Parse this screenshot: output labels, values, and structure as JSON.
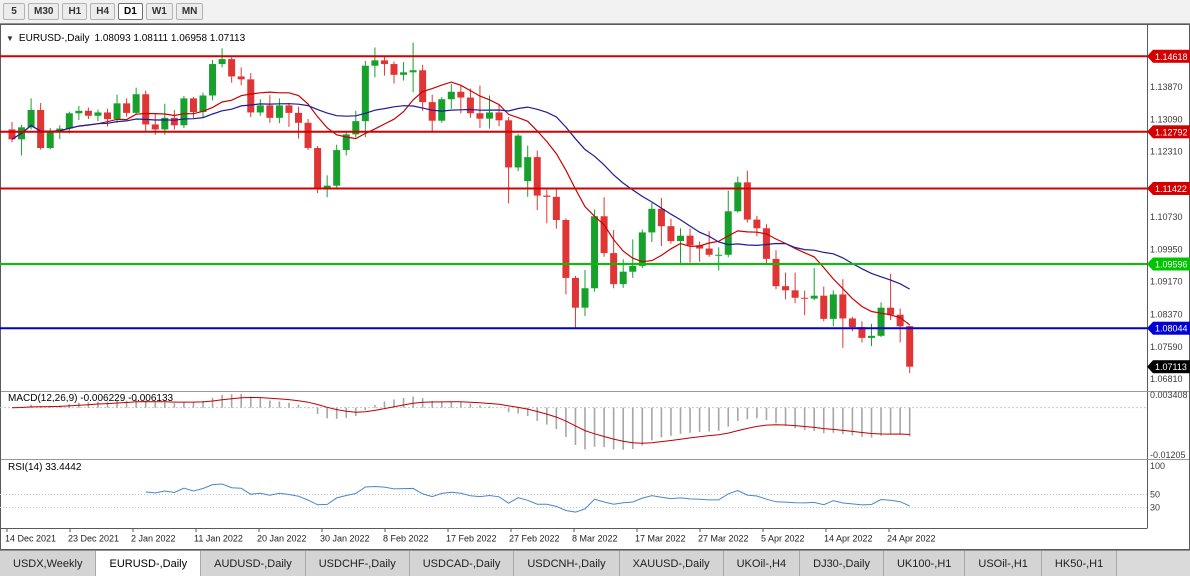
{
  "toolbar": {
    "periods": [
      {
        "label": "5",
        "active": false
      },
      {
        "label": "M30",
        "active": false
      },
      {
        "label": "H1",
        "active": false
      },
      {
        "label": "H4",
        "active": false
      },
      {
        "label": "D1",
        "active": true
      },
      {
        "label": "W1",
        "active": false
      },
      {
        "label": "MN",
        "active": false
      }
    ]
  },
  "chart": {
    "collapse_icon": "▼",
    "title_symbol": "EURUSD-,Daily",
    "title_ohlc": "1.08093 1.08111 1.06958 1.07113"
  },
  "price_scale": {
    "labels": [
      "1.13870",
      "1.13090",
      "1.12310",
      "1.10730",
      "1.09950",
      "1.09170",
      "1.08370",
      "1.07590",
      "1.06810"
    ]
  },
  "hlines": [
    {
      "price": 1.14618,
      "label": "1.14618",
      "color": "#d20000"
    },
    {
      "price": 1.12792,
      "label": "1.12792",
      "color": "#d20000"
    },
    {
      "price": 1.11422,
      "label": "1.11422",
      "color": "#d20000"
    },
    {
      "price": 1.09596,
      "label": "1.09596",
      "color": "#00c400"
    },
    {
      "price": 1.08044,
      "label": "1.08044",
      "color": "#0000d2"
    }
  ],
  "price_marker": {
    "price": 1.07113,
    "label": "1.07113",
    "color": "#000000"
  },
  "macd": {
    "label": "MACD(12,26,9) -0.006229 -0.006133",
    "params": [
      12,
      26,
      9
    ],
    "values_text": [
      "-0.006229",
      "-0.006133"
    ],
    "scale_labels": [
      "0.003408",
      "-0.01205"
    ],
    "scale_range": [
      -0.01205,
      0.003408
    ]
  },
  "rsi": {
    "label": "RSI(14) 33.4442",
    "period": 14,
    "value": 33.4442,
    "scale_labels": [
      {
        "value": 100,
        "label": "100"
      },
      {
        "value": 50,
        "label": "50"
      },
      {
        "value": 30,
        "label": "30"
      }
    ],
    "levels": [
      50,
      30
    ]
  },
  "date_axis": {
    "labels": [
      "14 Dec 2021",
      "23 Dec 2021",
      "2 Jan 2022",
      "11 Jan 2022",
      "20 Jan 2022",
      "30 Jan 2022",
      "8 Feb 2022",
      "17 Feb 2022",
      "27 Feb 2022",
      "8 Mar 2022",
      "17 Mar 2022",
      "27 Mar 2022",
      "5 Apr 2022",
      "14 Apr 2022",
      "24 Apr 2022"
    ]
  },
  "tabbar": {
    "tabs": [
      {
        "label": "USDX,Weekly",
        "active": false
      },
      {
        "label": "EURUSD-,Daily",
        "active": true
      },
      {
        "label": "AUDUSD-,Daily",
        "active": false
      },
      {
        "label": "USDCHF-,Daily",
        "active": false
      },
      {
        "label": "USDCAD-,Daily",
        "active": false
      },
      {
        "label": "USDCNH-,Daily",
        "active": false
      },
      {
        "label": "XAUUSD-,Daily",
        "active": false
      },
      {
        "label": "UKOil-,H4",
        "active": false
      },
      {
        "label": "DJ30-,Daily",
        "active": false
      },
      {
        "label": "UK100-,H1",
        "active": false
      },
      {
        "label": "USOil-,H1",
        "active": false
      },
      {
        "label": "HK50-,H1",
        "active": false
      }
    ]
  },
  "chart_data": {
    "type": "candlestick",
    "symbol": "EURUSD",
    "timeframe": "Daily",
    "price_range": [
      1.0655,
      1.1535
    ],
    "colors": {
      "up": "#17a02c",
      "down": "#e03535",
      "ma_fast": "#cc0000",
      "ma_slow": "#1c1c99",
      "macd_hist": "#a6a6a6",
      "macd_signal": "#c00000",
      "rsi": "#4a86c8"
    },
    "overlays": [
      {
        "name": "ma-fast",
        "period": 10,
        "color_key": "ma_fast"
      },
      {
        "name": "ma-slow",
        "period": 21,
        "color_key": "ma_slow"
      }
    ],
    "candles": [
      {
        "d": "14 Dec 2021",
        "o": 1.1285,
        "h": 1.1303,
        "l": 1.1254,
        "c": 1.1261
      },
      {
        "d": "15 Dec 2021",
        "o": 1.1261,
        "h": 1.1296,
        "l": 1.1222,
        "c": 1.129
      },
      {
        "d": "16 Dec 2021",
        "o": 1.129,
        "h": 1.136,
        "l": 1.1285,
        "c": 1.1332
      },
      {
        "d": "17 Dec 2021",
        "o": 1.1332,
        "h": 1.1349,
        "l": 1.1236,
        "c": 1.124
      },
      {
        "d": "20 Dec 2021",
        "o": 1.124,
        "h": 1.1288,
        "l": 1.1237,
        "c": 1.128
      },
      {
        "d": "21 Dec 2021",
        "o": 1.128,
        "h": 1.1295,
        "l": 1.1262,
        "c": 1.1287
      },
      {
        "d": "22 Dec 2021",
        "o": 1.1287,
        "h": 1.1328,
        "l": 1.1275,
        "c": 1.1324
      },
      {
        "d": "23 Dec 2021",
        "o": 1.1324,
        "h": 1.1342,
        "l": 1.1308,
        "c": 1.133
      },
      {
        "d": "24 Dec 2021",
        "o": 1.133,
        "h": 1.1338,
        "l": 1.131,
        "c": 1.1318
      },
      {
        "d": "27 Dec 2021",
        "o": 1.1318,
        "h": 1.1333,
        "l": 1.1305,
        "c": 1.1326
      },
      {
        "d": "28 Dec 2021",
        "o": 1.1326,
        "h": 1.1335,
        "l": 1.1292,
        "c": 1.131
      },
      {
        "d": "29 Dec 2021",
        "o": 1.131,
        "h": 1.1369,
        "l": 1.1301,
        "c": 1.1348
      },
      {
        "d": "30 Dec 2021",
        "o": 1.1348,
        "h": 1.136,
        "l": 1.1316,
        "c": 1.1325
      },
      {
        "d": "31 Dec 2021",
        "o": 1.1325,
        "h": 1.1386,
        "l": 1.1321,
        "c": 1.137
      },
      {
        "d": "3 Jan 2022",
        "o": 1.137,
        "h": 1.1379,
        "l": 1.1279,
        "c": 1.1297
      },
      {
        "d": "4 Jan 2022",
        "o": 1.1297,
        "h": 1.1323,
        "l": 1.1272,
        "c": 1.1285
      },
      {
        "d": "5 Jan 2022",
        "o": 1.1285,
        "h": 1.1347,
        "l": 1.1272,
        "c": 1.1313
      },
      {
        "d": "6 Jan 2022",
        "o": 1.1313,
        "h": 1.1332,
        "l": 1.1285,
        "c": 1.1295
      },
      {
        "d": "7 Jan 2022",
        "o": 1.1295,
        "h": 1.1366,
        "l": 1.1288,
        "c": 1.136
      },
      {
        "d": "10 Jan 2022",
        "o": 1.136,
        "h": 1.1363,
        "l": 1.1313,
        "c": 1.1327
      },
      {
        "d": "11 Jan 2022",
        "o": 1.1327,
        "h": 1.1374,
        "l": 1.1314,
        "c": 1.1367
      },
      {
        "d": "12 Jan 2022",
        "o": 1.1367,
        "h": 1.1453,
        "l": 1.1355,
        "c": 1.1443
      },
      {
        "d": "13 Jan 2022",
        "o": 1.1443,
        "h": 1.1481,
        "l": 1.1435,
        "c": 1.1455
      },
      {
        "d": "14 Jan 2022",
        "o": 1.1455,
        "h": 1.1459,
        "l": 1.1398,
        "c": 1.1413
      },
      {
        "d": "17 Jan 2022",
        "o": 1.1413,
        "h": 1.1435,
        "l": 1.1392,
        "c": 1.1406
      },
      {
        "d": "18 Jan 2022",
        "o": 1.1406,
        "h": 1.1421,
        "l": 1.1315,
        "c": 1.1326
      },
      {
        "d": "19 Jan 2022",
        "o": 1.1326,
        "h": 1.1358,
        "l": 1.1318,
        "c": 1.1343
      },
      {
        "d": "20 Jan 2022",
        "o": 1.1343,
        "h": 1.1368,
        "l": 1.1301,
        "c": 1.1313
      },
      {
        "d": "21 Jan 2022",
        "o": 1.1313,
        "h": 1.136,
        "l": 1.13,
        "c": 1.1343
      },
      {
        "d": "24 Jan 2022",
        "o": 1.1343,
        "h": 1.1349,
        "l": 1.1291,
        "c": 1.1325
      },
      {
        "d": "25 Jan 2022",
        "o": 1.1325,
        "h": 1.134,
        "l": 1.1263,
        "c": 1.1301
      },
      {
        "d": "26 Jan 2022",
        "o": 1.1301,
        "h": 1.131,
        "l": 1.1235,
        "c": 1.124
      },
      {
        "d": "27 Jan 2022",
        "o": 1.124,
        "h": 1.1245,
        "l": 1.1131,
        "c": 1.1144
      },
      {
        "d": "28 Jan 2022",
        "o": 1.1144,
        "h": 1.1174,
        "l": 1.1121,
        "c": 1.1149
      },
      {
        "d": "31 Jan 2022",
        "o": 1.1149,
        "h": 1.1248,
        "l": 1.1141,
        "c": 1.1235
      },
      {
        "d": "1 Feb 2022",
        "o": 1.1235,
        "h": 1.1279,
        "l": 1.1222,
        "c": 1.1273
      },
      {
        "d": "2 Feb 2022",
        "o": 1.1273,
        "h": 1.133,
        "l": 1.1266,
        "c": 1.1305
      },
      {
        "d": "3 Feb 2022",
        "o": 1.1305,
        "h": 1.1451,
        "l": 1.1266,
        "c": 1.1439
      },
      {
        "d": "4 Feb 2022",
        "o": 1.1439,
        "h": 1.1483,
        "l": 1.1411,
        "c": 1.1452
      },
      {
        "d": "7 Feb 2022",
        "o": 1.1452,
        "h": 1.146,
        "l": 1.1415,
        "c": 1.1443
      },
      {
        "d": "8 Feb 2022",
        "o": 1.1443,
        "h": 1.1449,
        "l": 1.1396,
        "c": 1.1417
      },
      {
        "d": "9 Feb 2022",
        "o": 1.1417,
        "h": 1.1448,
        "l": 1.1403,
        "c": 1.1423
      },
      {
        "d": "10 Feb 2022",
        "o": 1.1423,
        "h": 1.1495,
        "l": 1.1375,
        "c": 1.1428
      },
      {
        "d": "11 Feb 2022",
        "o": 1.1428,
        "h": 1.1441,
        "l": 1.133,
        "c": 1.1351
      },
      {
        "d": "14 Feb 2022",
        "o": 1.1351,
        "h": 1.1369,
        "l": 1.1278,
        "c": 1.1306
      },
      {
        "d": "15 Feb 2022",
        "o": 1.1306,
        "h": 1.1363,
        "l": 1.1301,
        "c": 1.1358
      },
      {
        "d": "16 Feb 2022",
        "o": 1.1358,
        "h": 1.1395,
        "l": 1.1335,
        "c": 1.1376
      },
      {
        "d": "17 Feb 2022",
        "o": 1.1376,
        "h": 1.1391,
        "l": 1.1324,
        "c": 1.1362
      },
      {
        "d": "18 Feb 2022",
        "o": 1.1362,
        "h": 1.1384,
        "l": 1.1313,
        "c": 1.1324
      },
      {
        "d": "21 Feb 2022",
        "o": 1.1324,
        "h": 1.1391,
        "l": 1.1288,
        "c": 1.1311
      },
      {
        "d": "22 Feb 2022",
        "o": 1.1311,
        "h": 1.1367,
        "l": 1.1287,
        "c": 1.1326
      },
      {
        "d": "23 Feb 2022",
        "o": 1.1326,
        "h": 1.1344,
        "l": 1.1293,
        "c": 1.1307
      },
      {
        "d": "24 Feb 2022",
        "o": 1.1307,
        "h": 1.1315,
        "l": 1.1106,
        "c": 1.1193
      },
      {
        "d": "25 Feb 2022",
        "o": 1.1193,
        "h": 1.1274,
        "l": 1.1184,
        "c": 1.127
      },
      {
        "d": "28 Feb 2022",
        "o": 1.116,
        "h": 1.1246,
        "l": 1.1122,
        "c": 1.1218
      },
      {
        "d": "1 Mar 2022",
        "o": 1.1218,
        "h": 1.1234,
        "l": 1.109,
        "c": 1.1125
      },
      {
        "d": "2 Mar 2022",
        "o": 1.1125,
        "h": 1.1139,
        "l": 1.1058,
        "c": 1.1122
      },
      {
        "d": "3 Mar 2022",
        "o": 1.1122,
        "h": 1.1143,
        "l": 1.1045,
        "c": 1.1066
      },
      {
        "d": "4 Mar 2022",
        "o": 1.1066,
        "h": 1.107,
        "l": 1.0886,
        "c": 1.0926
      },
      {
        "d": "7 Mar 2022",
        "o": 1.0926,
        "h": 1.0931,
        "l": 1.0806,
        "c": 1.0854
      },
      {
        "d": "8 Mar 2022",
        "o": 1.0854,
        "h": 1.0945,
        "l": 1.0834,
        "c": 1.0901
      },
      {
        "d": "9 Mar 2022",
        "o": 1.0901,
        "h": 1.1091,
        "l": 1.0893,
        "c": 1.1075
      },
      {
        "d": "10 Mar 2022",
        "o": 1.1075,
        "h": 1.1121,
        "l": 1.0977,
        "c": 1.0986
      },
      {
        "d": "11 Mar 2022",
        "o": 1.0986,
        "h": 1.1042,
        "l": 1.0901,
        "c": 1.0911
      },
      {
        "d": "14 Mar 2022",
        "o": 1.0911,
        "h": 1.0971,
        "l": 1.0902,
        "c": 1.0941
      },
      {
        "d": "15 Mar 2022",
        "o": 1.0941,
        "h": 1.1019,
        "l": 1.0926,
        "c": 1.0955
      },
      {
        "d": "16 Mar 2022",
        "o": 1.0955,
        "h": 1.1043,
        "l": 1.095,
        "c": 1.1036
      },
      {
        "d": "17 Mar 2022",
        "o": 1.1036,
        "h": 1.1107,
        "l": 1.1013,
        "c": 1.1093
      },
      {
        "d": "18 Mar 2022",
        "o": 1.1093,
        "h": 1.1119,
        "l": 1.1003,
        "c": 1.1051
      },
      {
        "d": "21 Mar 2022",
        "o": 1.1051,
        "h": 1.1069,
        "l": 1.1009,
        "c": 1.1015
      },
      {
        "d": "22 Mar 2022",
        "o": 1.1015,
        "h": 1.1046,
        "l": 1.0962,
        "c": 1.1028
      },
      {
        "d": "23 Mar 2022",
        "o": 1.1028,
        "h": 1.1045,
        "l": 1.0963,
        "c": 1.1005
      },
      {
        "d": "24 Mar 2022",
        "o": 1.1005,
        "h": 1.1014,
        "l": 1.0965,
        "c": 1.0997
      },
      {
        "d": "25 Mar 2022",
        "o": 1.0997,
        "h": 1.1039,
        "l": 1.0977,
        "c": 1.0982
      },
      {
        "d": "28 Mar 2022",
        "o": 1.0982,
        "h": 1.1,
        "l": 1.0944,
        "c": 1.0982
      },
      {
        "d": "29 Mar 2022",
        "o": 1.0982,
        "h": 1.1137,
        "l": 1.0976,
        "c": 1.1087
      },
      {
        "d": "30 Mar 2022",
        "o": 1.1087,
        "h": 1.1171,
        "l": 1.1084,
        "c": 1.1157
      },
      {
        "d": "31 Mar 2022",
        "o": 1.1157,
        "h": 1.1185,
        "l": 1.106,
        "c": 1.1067
      },
      {
        "d": "1 Apr 2022",
        "o": 1.1067,
        "h": 1.1076,
        "l": 1.1027,
        "c": 1.1046
      },
      {
        "d": "4 Apr 2022",
        "o": 1.1046,
        "h": 1.1056,
        "l": 1.096,
        "c": 1.0972
      },
      {
        "d": "5 Apr 2022",
        "o": 1.0972,
        "h": 1.0993,
        "l": 1.0899,
        "c": 1.0906
      },
      {
        "d": "6 Apr 2022",
        "o": 1.0906,
        "h": 1.0939,
        "l": 1.0874,
        "c": 1.0896
      },
      {
        "d": "7 Apr 2022",
        "o": 1.0896,
        "h": 1.0939,
        "l": 1.0865,
        "c": 1.0878
      },
      {
        "d": "8 Apr 2022",
        "o": 1.0878,
        "h": 1.0895,
        "l": 1.0836,
        "c": 1.0876
      },
      {
        "d": "11 Apr 2022",
        "o": 1.0876,
        "h": 1.095,
        "l": 1.0872,
        "c": 1.0883
      },
      {
        "d": "12 Apr 2022",
        "o": 1.0883,
        "h": 1.0905,
        "l": 1.0821,
        "c": 1.0827
      },
      {
        "d": "13 Apr 2022",
        "o": 1.0827,
        "h": 1.0896,
        "l": 1.0809,
        "c": 1.0886
      },
      {
        "d": "14 Apr 2022",
        "o": 1.0886,
        "h": 1.0923,
        "l": 1.0757,
        "c": 1.0828
      },
      {
        "d": "15 Apr 2022",
        "o": 1.0828,
        "h": 1.0832,
        "l": 1.0797,
        "c": 1.0807
      },
      {
        "d": "18 Apr 2022",
        "o": 1.0807,
        "h": 1.0821,
        "l": 1.077,
        "c": 1.0781
      },
      {
        "d": "19 Apr 2022",
        "o": 1.0781,
        "h": 1.0815,
        "l": 1.0761,
        "c": 1.0786
      },
      {
        "d": "20 Apr 2022",
        "o": 1.0786,
        "h": 1.0867,
        "l": 1.0783,
        "c": 1.0854
      },
      {
        "d": "21 Apr 2022",
        "o": 1.0854,
        "h": 1.0936,
        "l": 1.0824,
        "c": 1.0837
      },
      {
        "d": "22 Apr 2022",
        "o": 1.0837,
        "h": 1.0852,
        "l": 1.077,
        "c": 1.0809
      },
      {
        "d": "25 Apr 2022",
        "o": 1.08093,
        "h": 1.08111,
        "l": 1.06958,
        "c": 1.07113
      }
    ]
  }
}
